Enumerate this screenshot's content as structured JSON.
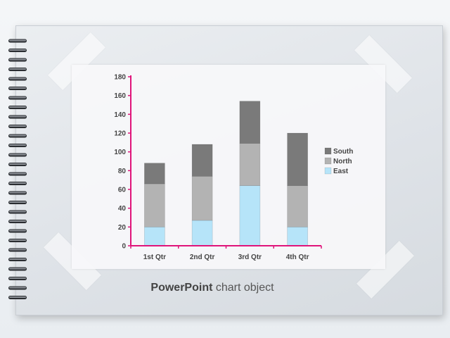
{
  "caption": {
    "bold": "PowerPoint",
    "rest": " chart object"
  },
  "chart_data": {
    "type": "bar",
    "stacked": true,
    "categories": [
      "1st Qtr",
      "2nd Qtr",
      "3rd Qtr",
      "4th Qtr"
    ],
    "series": [
      {
        "name": "East",
        "values": [
          20,
          27,
          64,
          20
        ],
        "color": "#b6e4f9"
      },
      {
        "name": "North",
        "values": [
          46,
          47,
          45,
          44
        ],
        "color": "#b3b3b3"
      },
      {
        "name": "South",
        "values": [
          22,
          34,
          45,
          56
        ],
        "color": "#7a7a7a"
      }
    ],
    "ylim": [
      0,
      180
    ],
    "yticks": [
      0,
      20,
      40,
      60,
      80,
      100,
      120,
      140,
      160,
      180
    ],
    "axis_color": "#e0147a",
    "legend_position": "right",
    "legend_order": [
      "South",
      "North",
      "East"
    ],
    "grid": false
  }
}
